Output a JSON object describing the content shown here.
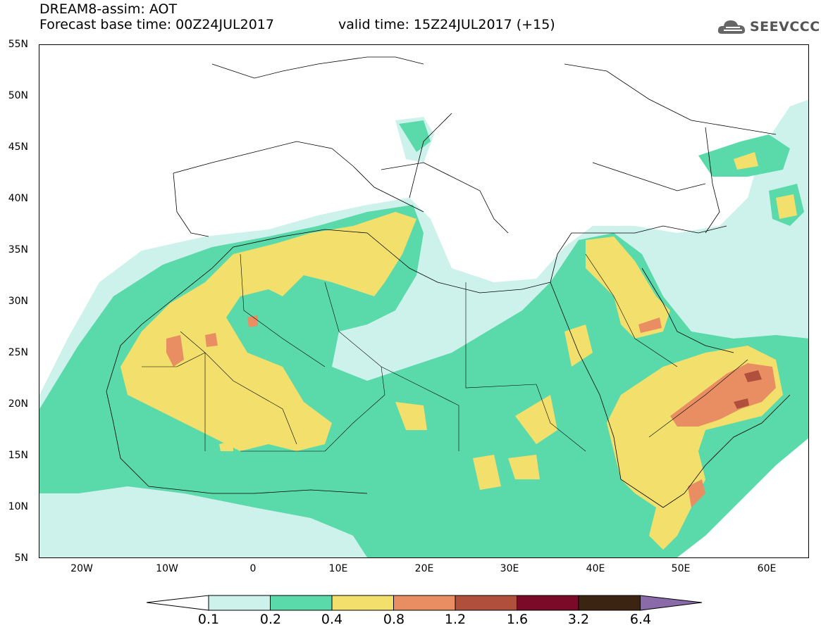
{
  "header": {
    "title": "DREAM8-assim: AOT",
    "forecast": "Forecast base time: 00Z24JUL2017",
    "valid": "valid time: 15Z24JUL2017 (+15)",
    "logo_text": "SEEVCCC"
  },
  "axes": {
    "lat_labels": [
      "55N",
      "50N",
      "45N",
      "40N",
      "35N",
      "30N",
      "25N",
      "20N",
      "15N",
      "10N",
      "5N"
    ],
    "lon_labels": [
      "20W",
      "10W",
      "0",
      "10E",
      "20E",
      "30E",
      "40E",
      "50E",
      "60E"
    ]
  },
  "colorbar": {
    "labels": [
      "0.1",
      "0.2",
      "0.4",
      "0.8",
      "1.2",
      "1.6",
      "3.2",
      "6.4"
    ],
    "colors": [
      "#cdf2ec",
      "#5ad9aa",
      "#f3e06c",
      "#e88e62",
      "#b04f3c",
      "#7a0a28",
      "#3b2412",
      "#8a6aa8"
    ]
  }
}
